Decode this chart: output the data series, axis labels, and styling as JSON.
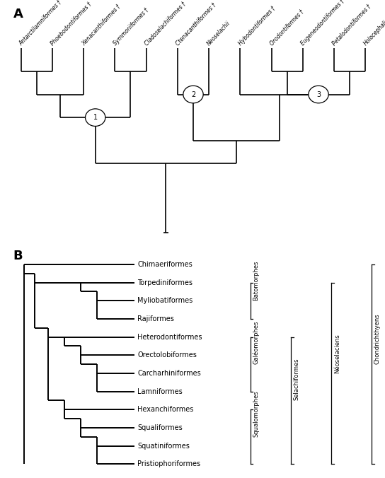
{
  "panel_A_taxa": [
    "Antarctilamniformes †",
    "Phoebodontiformes †",
    "Xenacanthiformes †",
    "Symmoriiformes †",
    "Cladoselachiformes †",
    "Ctenacanthiformes †",
    "Neoselachii",
    "Hybodontiformes †",
    "Orodontiformes †",
    "Eugeneodontiformes †",
    "Petalodontiformes †",
    "Holocephali"
  ],
  "panel_B_taxa": [
    "Chimaeriformes",
    "Torpediniformes",
    "Myliobatiformes",
    "Rajiformes",
    "Heterodontiformes",
    "Orectolobiformes",
    "Carcharhiniformes",
    "Lamniformes",
    "Hexanchiformes",
    "Squaliformes",
    "Squatiniformes",
    "Pristiophoriformes"
  ],
  "lw_a": 1.2,
  "lw_b": 1.4,
  "font_size_a": 5.5,
  "font_size_b": 7.0,
  "font_size_label": 13
}
